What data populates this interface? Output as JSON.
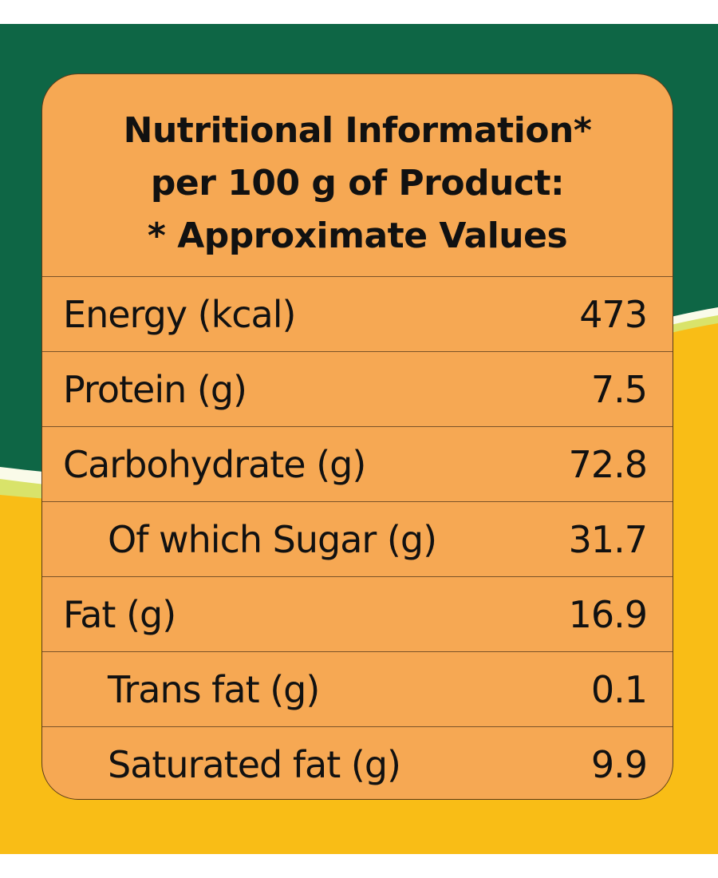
{
  "colors": {
    "background_dark_green": "#0e6645",
    "background_lime": "#d9e36a",
    "background_yellow": "#f9bd16",
    "background_white": "#ffffff",
    "panel_orange": "#f6a853",
    "panel_border": "#5a3a1a",
    "text": "#111111"
  },
  "header": {
    "line1": "Nutritional Information*",
    "line2": "per 100 g of Product:",
    "line3": "* Approximate Values"
  },
  "rows": [
    {
      "label": "Energy (kcal)",
      "value": "473"
    },
    {
      "label": "Protein (g)",
      "value": "7.5"
    },
    {
      "label": "Carbohydrate (g)",
      "value": "72.8"
    },
    {
      "label": "Of which Sugar (g)",
      "value": "31.7"
    },
    {
      "label": "Fat (g)",
      "value": "16.9"
    },
    {
      "label": "Trans fat (g)",
      "value": "0.1"
    },
    {
      "label": "Saturated fat (g)",
      "value": "9.9"
    }
  ]
}
